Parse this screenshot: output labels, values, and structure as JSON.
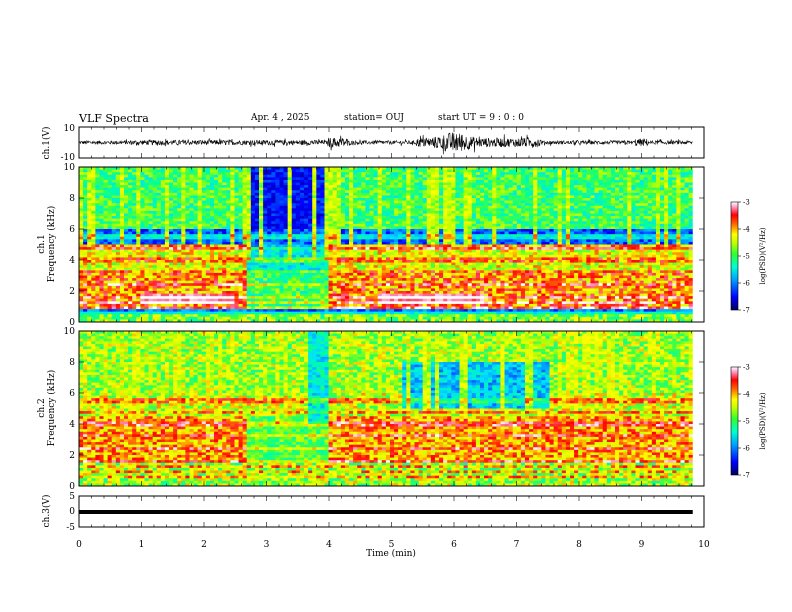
{
  "header": {
    "title": "VLF Spectra",
    "date": "Apr. 4 , 2025",
    "station": "station= OUJ",
    "start": "start  UT =   9 : 0  : 0"
  },
  "chart_data": [
    {
      "type": "line",
      "panel": "ch1-waveform",
      "ylabel": "ch.1(V)",
      "ylim": [
        -10,
        10
      ],
      "yticks": [
        "10",
        "-10"
      ],
      "xlim": [
        0,
        10
      ],
      "note_series": "waveform trace, mostly within ±2 V, bursts near 4–4.3 min and 5.5–7.3 min"
    },
    {
      "type": "heatmap",
      "panel": "ch1-spectrogram",
      "ylabel": "ch.1\nFrequency (kHz)",
      "ylim": [
        0,
        10
      ],
      "yticks": [
        "0",
        "2",
        "4",
        "6",
        "8",
        "10"
      ],
      "xlim": [
        0,
        10
      ],
      "colorbar": {
        "label": "log(PSD)(V²/Hz)",
        "range": [
          -7,
          -3
        ],
        "ticks": [
          "-3",
          "-4",
          "-5",
          "-6",
          "-7"
        ]
      }
    },
    {
      "type": "heatmap",
      "panel": "ch2-spectrogram",
      "ylabel": "ch.2\nFrequency (kHz)",
      "ylim": [
        0,
        10
      ],
      "yticks": [
        "0",
        "2",
        "4",
        "6",
        "8",
        "10"
      ],
      "xlim": [
        0,
        10
      ],
      "colorbar": {
        "label": "log(PSD)(V²/Hz)",
        "range": [
          -7,
          -3
        ],
        "ticks": [
          "-3",
          "-4",
          "-5",
          "-6",
          "-7"
        ]
      }
    },
    {
      "type": "line",
      "panel": "ch3-waveform",
      "ylabel": "ch.3(V)",
      "ylim": [
        -5,
        5
      ],
      "yticks": [
        "5",
        "0",
        "-5"
      ],
      "xlim": [
        0,
        10
      ],
      "xlabel": "Time (min)",
      "xticks": [
        "0",
        "1",
        "2",
        "3",
        "4",
        "5",
        "6",
        "7",
        "8",
        "9",
        "10"
      ],
      "series": [
        {
          "x": [
            0,
            9.82
          ],
          "y": [
            -1.3,
            -1.3
          ]
        }
      ]
    }
  ],
  "colors": {
    "cmap": [
      "#000070",
      "#0000ff",
      "#0090ff",
      "#00e0ff",
      "#00ffa0",
      "#40ff40",
      "#c0ff00",
      "#ffff00",
      "#ff8000",
      "#ff0000",
      "#ff80b0",
      "#ffffff"
    ]
  }
}
